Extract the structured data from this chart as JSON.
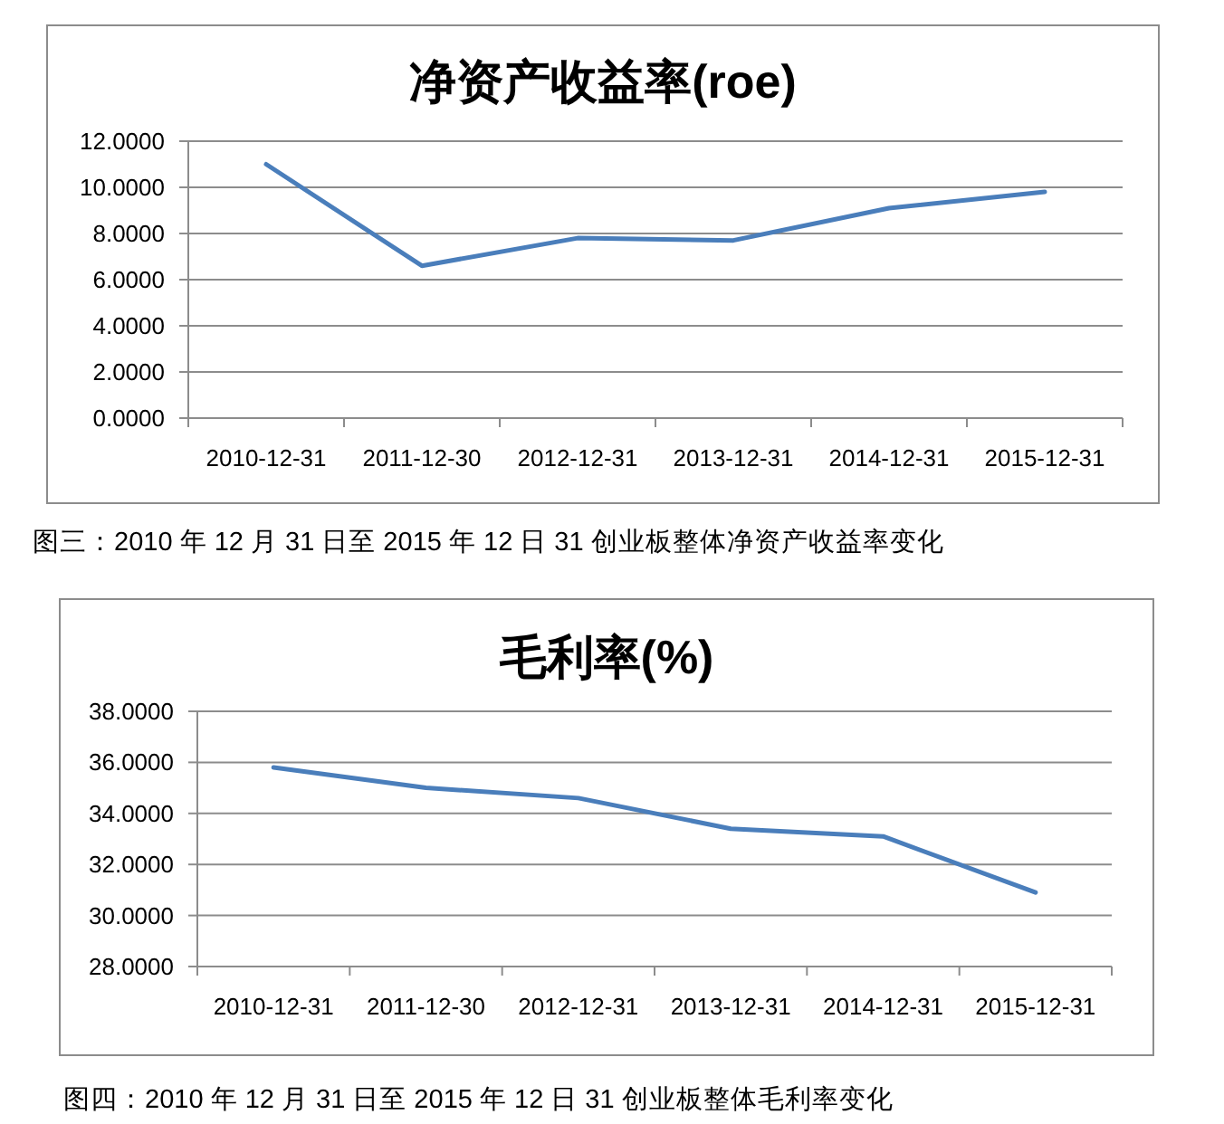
{
  "chart_data": [
    {
      "type": "line",
      "title": "净资产收益率(roe)",
      "categories": [
        "2010-12-31",
        "2011-12-30",
        "2012-12-31",
        "2013-12-31",
        "2014-12-31",
        "2015-12-31"
      ],
      "series": [
        {
          "color": "#4a7ebb",
          "values": [
            11.0,
            6.6,
            7.8,
            7.7,
            9.1,
            9.8
          ]
        }
      ],
      "ylim": [
        0,
        12
      ],
      "yticks": [
        {
          "value": 0,
          "label": "0.0000"
        },
        {
          "value": 2,
          "label": "2.0000"
        },
        {
          "value": 4,
          "label": "4.0000"
        },
        {
          "value": 6,
          "label": "6.0000"
        },
        {
          "value": 8,
          "label": "8.0000"
        },
        {
          "value": 10,
          "label": "10.0000"
        },
        {
          "value": 12,
          "label": "12.0000"
        }
      ],
      "grid": "y",
      "annotations": [
        "图三：2010 年 12 月 31 日至 2015 年 12 日 31 创业板整体净资产收益率变化"
      ]
    },
    {
      "type": "line",
      "title": "毛利率(%)",
      "categories": [
        "2010-12-31",
        "2011-12-30",
        "2012-12-31",
        "2013-12-31",
        "2014-12-31",
        "2015-12-31"
      ],
      "series": [
        {
          "color": "#4a7ebb",
          "values": [
            35.8,
            35.0,
            34.6,
            33.4,
            33.1,
            30.9
          ]
        }
      ],
      "ylim": [
        28,
        38
      ],
      "yticks": [
        {
          "value": 28,
          "label": "28.0000"
        },
        {
          "value": 30,
          "label": "30.0000"
        },
        {
          "value": 32,
          "label": "32.0000"
        },
        {
          "value": 34,
          "label": "34.0000"
        },
        {
          "value": 36,
          "label": "36.0000"
        },
        {
          "value": 38,
          "label": "38.0000"
        }
      ],
      "grid": "y",
      "annotations": [
        "图四：2010 年 12 月 31 日至 2015 年 12 日 31 创业板整体毛利率变化"
      ]
    }
  ]
}
